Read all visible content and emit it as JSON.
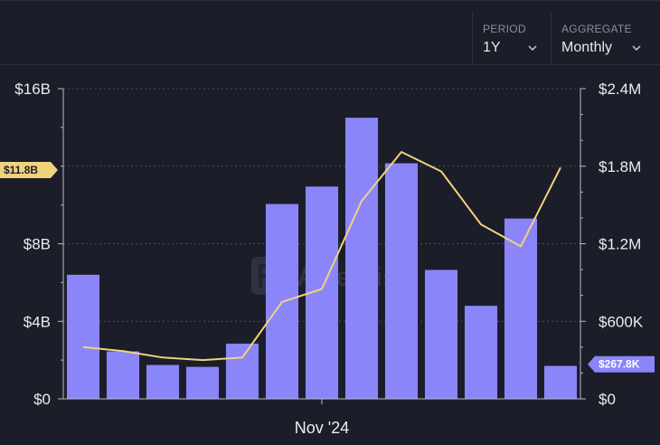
{
  "controls": {
    "period": {
      "label": "PERIOD",
      "value": "1Y"
    },
    "aggregate": {
      "label": "AGGREGATE",
      "value": "Monthly"
    }
  },
  "watermark": "Artemis",
  "colors": {
    "background": "#1b1d29",
    "bar": "#8b85fa",
    "line": "#f1d27c",
    "grid": "#4a4d5c"
  },
  "chart_data": {
    "type": "bar",
    "x_tick_labels": [
      "Nov '24"
    ],
    "series": [
      {
        "type": "bar",
        "axis": "left",
        "values": [
          6.4,
          2.45,
          1.75,
          1.65,
          2.85,
          10.05,
          10.95,
          14.5,
          12.15,
          6.65,
          4.8,
          9.3,
          1.7
        ]
      },
      {
        "type": "line",
        "axis": "right",
        "values": [
          0.4,
          0.37,
          0.32,
          0.3,
          0.32,
          0.75,
          0.85,
          1.53,
          1.91,
          1.76,
          1.35,
          1.18,
          1.79
        ]
      }
    ],
    "y_left": {
      "ticks": [
        "$0",
        "$4B",
        "$8B",
        "$16B"
      ],
      "tick_values": [
        0,
        4,
        8,
        16
      ],
      "min": 0,
      "max": 16
    },
    "y_right": {
      "ticks": [
        "$0",
        "$600K",
        "$1.2M",
        "$1.8M",
        "$2.4M"
      ],
      "tick_values": [
        0,
        0.6,
        1.2,
        1.8,
        2.4
      ],
      "min": 0,
      "max": 2.4
    },
    "markers": {
      "left": {
        "label": "$11.8B",
        "value": 11.8
      },
      "right": {
        "label": "$267.8K",
        "value": 0.2678
      }
    },
    "grid": true
  }
}
